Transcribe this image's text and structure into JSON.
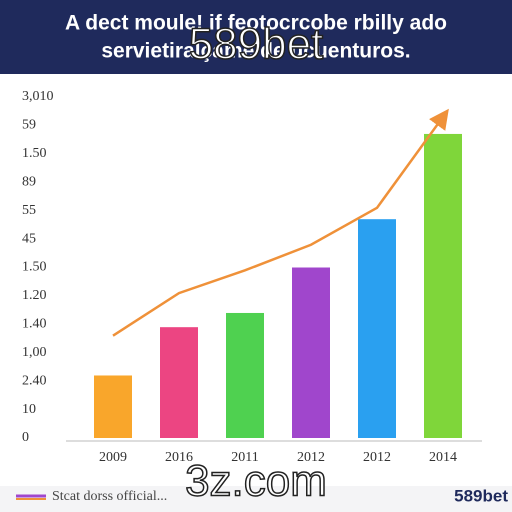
{
  "chart_data": {
    "type": "bar",
    "title": [
      "A dect moule! if feotocrcobe rbilly ado",
      "servietiralçame de ucuenturos."
    ],
    "watermarks": [
      "589bet",
      "3z.com"
    ],
    "brand": "589bet",
    "categories": [
      "2009",
      "2016",
      "2011",
      "2012",
      "2012",
      "2014"
    ],
    "series": [
      {
        "type": "bar",
        "colors": [
          "#f9a62b",
          "#ec4582",
          "#4fd150",
          "#a046cc",
          "#2aa0f0",
          "#7fd63a"
        ],
        "values": [
          2.2,
          3.9,
          4.4,
          6.0,
          7.7,
          10.7
        ]
      },
      {
        "type": "line",
        "name": "Stcat dorss official...",
        "color": "#ef9139",
        "values": [
          3.6,
          5.1,
          5.9,
          6.8,
          8.1,
          11.3
        ]
      }
    ],
    "ylim": [
      0,
      12
    ],
    "yticks": [
      0,
      {
        "value": 1,
        "label": "10"
      },
      {
        "value": 2,
        "label": "2.40"
      },
      {
        "value": 3,
        "label": "1,00"
      },
      {
        "value": 4,
        "label": "1.40"
      },
      {
        "value": 5,
        "label": "1.20"
      },
      {
        "value": 6,
        "label": "1.50"
      },
      {
        "value": 7,
        "label": "45"
      },
      {
        "value": 8,
        "label": "55"
      },
      {
        "value": 9,
        "label": "89"
      },
      {
        "value": 10,
        "label": "1.50"
      },
      {
        "value": 11,
        "label": "59"
      },
      {
        "value": 12,
        "label": "3,010"
      }
    ]
  }
}
